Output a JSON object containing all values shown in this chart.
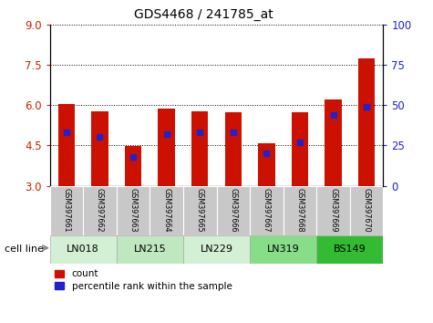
{
  "title": "GDS4468 / 241785_at",
  "samples": [
    "GSM397661",
    "GSM397662",
    "GSM397663",
    "GSM397664",
    "GSM397665",
    "GSM397666",
    "GSM397667",
    "GSM397668",
    "GSM397669",
    "GSM397670"
  ],
  "count_values": [
    6.02,
    5.75,
    4.48,
    5.87,
    5.77,
    5.73,
    4.58,
    5.72,
    6.22,
    7.72
  ],
  "percentile_values": [
    33,
    30,
    18,
    32,
    33,
    33,
    20,
    27,
    44,
    49
  ],
  "cell_lines": [
    {
      "label": "LN018",
      "start": 0,
      "end": 2,
      "color": "#d4f0d4"
    },
    {
      "label": "LN215",
      "start": 2,
      "end": 4,
      "color": "#c0e8c0"
    },
    {
      "label": "LN229",
      "start": 4,
      "end": 6,
      "color": "#d4f0d4"
    },
    {
      "label": "LN319",
      "start": 6,
      "end": 8,
      "color": "#88dd88"
    },
    {
      "label": "BS149",
      "start": 8,
      "end": 10,
      "color": "#33bb33"
    }
  ],
  "ylim_left": [
    3,
    9
  ],
  "ylim_right": [
    0,
    100
  ],
  "yticks_left": [
    3,
    4.5,
    6,
    7.5,
    9
  ],
  "yticks_right": [
    0,
    25,
    50,
    75,
    100
  ],
  "bar_color": "#cc1100",
  "percentile_color": "#2222cc",
  "bar_width": 0.5,
  "sample_label_bg": "#c8c8c8",
  "plot_bg_color": "#ffffff"
}
